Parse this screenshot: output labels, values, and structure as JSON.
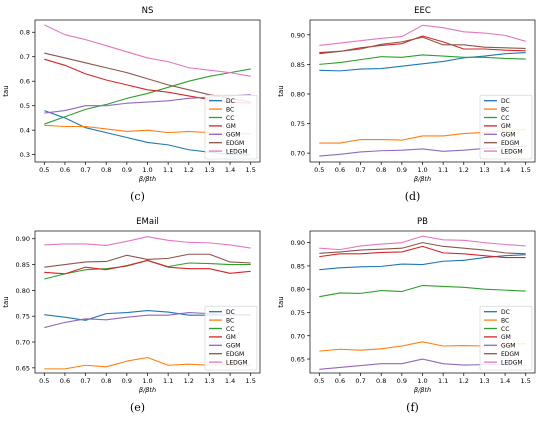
{
  "chart_data": [
    {
      "type": "line",
      "title": "NS",
      "xlabel": "β/βth",
      "ylabel": "tau",
      "caption": "(c)",
      "x": [
        0.5,
        0.6,
        0.7,
        0.8,
        0.9,
        1.0,
        1.1,
        1.2,
        1.3,
        1.4,
        1.5
      ],
      "xticks": [
        "0.5",
        "0.6",
        "0.7",
        "0.8",
        "0.9",
        "1.0",
        "1.1",
        "1.2",
        "1.3",
        "1.4",
        "1.5"
      ],
      "ylim": [
        0.27,
        0.85
      ],
      "yticks": [
        0.3,
        0.4,
        0.5,
        0.6,
        0.7,
        0.8
      ],
      "ytick_labels": [
        "0.3",
        "0.4",
        "0.5",
        "0.6",
        "0.7",
        "0.8"
      ],
      "legend": "bottom-right",
      "series": [
        {
          "name": "DC",
          "color": "#1f77b4",
          "values": [
            0.48,
            0.45,
            0.41,
            0.39,
            0.37,
            0.35,
            0.34,
            0.32,
            0.31,
            0.3,
            0.3
          ]
        },
        {
          "name": "BC",
          "color": "#ff7f0e",
          "values": [
            0.42,
            0.415,
            0.415,
            0.405,
            0.395,
            0.4,
            0.39,
            0.395,
            0.39,
            0.385,
            0.385
          ]
        },
        {
          "name": "CC",
          "color": "#2ca02c",
          "values": [
            0.425,
            0.455,
            0.485,
            0.505,
            0.53,
            0.55,
            0.575,
            0.6,
            0.62,
            0.635,
            0.65
          ]
        },
        {
          "name": "GM",
          "color": "#d62728",
          "values": [
            0.69,
            0.665,
            0.63,
            0.605,
            0.585,
            0.565,
            0.555,
            0.54,
            0.525,
            0.515,
            0.51
          ]
        },
        {
          "name": "GGM",
          "color": "#9467bd",
          "values": [
            0.47,
            0.48,
            0.5,
            0.5,
            0.51,
            0.515,
            0.52,
            0.53,
            0.535,
            0.54,
            0.545
          ]
        },
        {
          "name": "EDGM",
          "color": "#8c564b",
          "values": [
            0.715,
            0.695,
            0.675,
            0.655,
            0.635,
            0.61,
            0.585,
            0.565,
            0.545,
            0.53,
            0.515
          ]
        },
        {
          "name": "LEDGM",
          "color": "#e377c2",
          "values": [
            0.83,
            0.79,
            0.77,
            0.745,
            0.72,
            0.695,
            0.68,
            0.655,
            0.645,
            0.635,
            0.62
          ]
        }
      ]
    },
    {
      "type": "line",
      "title": "EEC",
      "xlabel": "β/βth",
      "ylabel": "tau",
      "caption": "(d)",
      "x": [
        0.5,
        0.6,
        0.7,
        0.8,
        0.9,
        1.0,
        1.1,
        1.2,
        1.3,
        1.4,
        1.5
      ],
      "xticks": [
        "0.5",
        "0.6",
        "0.7",
        "0.8",
        "0.9",
        "1.0",
        "1.1",
        "1.2",
        "1.3",
        "1.4",
        "1.5"
      ],
      "ylim": [
        0.685,
        0.925
      ],
      "yticks": [
        0.7,
        0.75,
        0.8,
        0.85,
        0.9
      ],
      "ytick_labels": [
        "0.70",
        "0.75",
        "0.80",
        "0.85",
        "0.90"
      ],
      "legend": "bottom-right",
      "series": [
        {
          "name": "DC",
          "color": "#1f77b4",
          "values": [
            0.84,
            0.839,
            0.842,
            0.843,
            0.847,
            0.851,
            0.855,
            0.861,
            0.864,
            0.868,
            0.87
          ]
        },
        {
          "name": "BC",
          "color": "#ff7f0e",
          "values": [
            0.717,
            0.717,
            0.723,
            0.723,
            0.722,
            0.729,
            0.729,
            0.733,
            0.735,
            0.738,
            0.74
          ]
        },
        {
          "name": "CC",
          "color": "#2ca02c",
          "values": [
            0.85,
            0.853,
            0.858,
            0.863,
            0.862,
            0.866,
            0.864,
            0.862,
            0.862,
            0.86,
            0.859
          ]
        },
        {
          "name": "GM",
          "color": "#d62728",
          "values": [
            0.87,
            0.872,
            0.878,
            0.882,
            0.885,
            0.898,
            0.888,
            0.876,
            0.876,
            0.874,
            0.873
          ]
        },
        {
          "name": "GGM",
          "color": "#9467bd",
          "values": [
            0.695,
            0.698,
            0.702,
            0.704,
            0.705,
            0.707,
            0.703,
            0.705,
            0.708,
            0.71,
            0.712
          ]
        },
        {
          "name": "EDGM",
          "color": "#8c564b",
          "values": [
            0.868,
            0.872,
            0.876,
            0.884,
            0.888,
            0.896,
            0.883,
            0.883,
            0.879,
            0.878,
            0.877
          ]
        },
        {
          "name": "LEDGM",
          "color": "#e377c2",
          "values": [
            0.882,
            0.886,
            0.89,
            0.894,
            0.897,
            0.916,
            0.912,
            0.905,
            0.903,
            0.899,
            0.889
          ]
        }
      ]
    },
    {
      "type": "line",
      "title": "EMail",
      "xlabel": "β/βth",
      "ylabel": "tau",
      "caption": "(e)",
      "x": [
        0.5,
        0.6,
        0.7,
        0.8,
        0.9,
        1.0,
        1.1,
        1.2,
        1.3,
        1.4,
        1.5
      ],
      "xticks": [
        "0.5",
        "0.6",
        "0.7",
        "0.8",
        "0.9",
        "1.0",
        "1.1",
        "1.2",
        "1.3",
        "1.4",
        "1.5"
      ],
      "ylim": [
        0.64,
        0.915
      ],
      "yticks": [
        0.65,
        0.7,
        0.75,
        0.8,
        0.85,
        0.9
      ],
      "ytick_labels": [
        "0.65",
        "0.70",
        "0.75",
        "0.80",
        "0.85",
        "0.90"
      ],
      "legend": "bottom-right",
      "series": [
        {
          "name": "DC",
          "color": "#1f77b4",
          "values": [
            0.753,
            0.748,
            0.742,
            0.755,
            0.757,
            0.761,
            0.758,
            0.752,
            0.752,
            0.753,
            0.753
          ]
        },
        {
          "name": "BC",
          "color": "#ff7f0e",
          "values": [
            0.648,
            0.648,
            0.655,
            0.652,
            0.663,
            0.67,
            0.655,
            0.657,
            0.655,
            0.656,
            0.655
          ]
        },
        {
          "name": "CC",
          "color": "#2ca02c",
          "values": [
            0.822,
            0.832,
            0.84,
            0.842,
            0.847,
            0.858,
            0.846,
            0.853,
            0.852,
            0.85,
            0.85
          ]
        },
        {
          "name": "GM",
          "color": "#d62728",
          "values": [
            0.835,
            0.832,
            0.845,
            0.84,
            0.848,
            0.858,
            0.845,
            0.842,
            0.842,
            0.833,
            0.837
          ]
        },
        {
          "name": "GGM",
          "color": "#9467bd",
          "values": [
            0.728,
            0.738,
            0.745,
            0.743,
            0.748,
            0.752,
            0.752,
            0.757,
            0.755,
            0.752,
            0.752
          ]
        },
        {
          "name": "EDGM",
          "color": "#8c564b",
          "values": [
            0.845,
            0.85,
            0.855,
            0.856,
            0.868,
            0.86,
            0.862,
            0.87,
            0.87,
            0.855,
            0.853
          ]
        },
        {
          "name": "LEDGM",
          "color": "#e377c2",
          "values": [
            0.888,
            0.89,
            0.89,
            0.887,
            0.895,
            0.904,
            0.897,
            0.893,
            0.892,
            0.888,
            0.882
          ]
        }
      ]
    },
    {
      "type": "line",
      "title": "PB",
      "xlabel": "β/βth",
      "ylabel": "tau",
      "caption": "(f)",
      "x": [
        0.5,
        0.6,
        0.7,
        0.8,
        0.9,
        1.0,
        1.1,
        1.2,
        1.3,
        1.4,
        1.5
      ],
      "xticks": [
        "0.5",
        "0.6",
        "0.7",
        "0.8",
        "0.9",
        "1.0",
        "1.1",
        "1.2",
        "1.3",
        "1.4",
        "1.5"
      ],
      "ylim": [
        0.62,
        0.925
      ],
      "yticks": [
        0.65,
        0.7,
        0.75,
        0.8,
        0.85,
        0.9
      ],
      "ytick_labels": [
        "0.65",
        "0.70",
        "0.75",
        "0.80",
        "0.85",
        "0.90"
      ],
      "legend": "bottom-right",
      "series": [
        {
          "name": "DC",
          "color": "#1f77b4",
          "values": [
            0.842,
            0.846,
            0.848,
            0.849,
            0.854,
            0.853,
            0.86,
            0.862,
            0.868,
            0.872,
            0.874
          ]
        },
        {
          "name": "BC",
          "color": "#ff7f0e",
          "values": [
            0.667,
            0.671,
            0.669,
            0.672,
            0.678,
            0.687,
            0.678,
            0.679,
            0.678,
            0.681,
            0.683
          ]
        },
        {
          "name": "CC",
          "color": "#2ca02c",
          "values": [
            0.784,
            0.792,
            0.791,
            0.797,
            0.795,
            0.808,
            0.806,
            0.804,
            0.8,
            0.798,
            0.796
          ]
        },
        {
          "name": "GM",
          "color": "#d62728",
          "values": [
            0.87,
            0.876,
            0.876,
            0.879,
            0.88,
            0.892,
            0.878,
            0.876,
            0.872,
            0.868,
            0.868
          ]
        },
        {
          "name": "GGM",
          "color": "#9467bd",
          "values": [
            0.628,
            0.632,
            0.636,
            0.64,
            0.64,
            0.65,
            0.64,
            0.637,
            0.638,
            0.638,
            0.636
          ]
        },
        {
          "name": "EDGM",
          "color": "#8c564b",
          "values": [
            0.877,
            0.88,
            0.884,
            0.886,
            0.888,
            0.9,
            0.892,
            0.888,
            0.884,
            0.878,
            0.876
          ]
        },
        {
          "name": "LEDGM",
          "color": "#e377c2",
          "values": [
            0.888,
            0.885,
            0.893,
            0.897,
            0.9,
            0.914,
            0.906,
            0.905,
            0.9,
            0.896,
            0.893
          ]
        }
      ]
    }
  ]
}
